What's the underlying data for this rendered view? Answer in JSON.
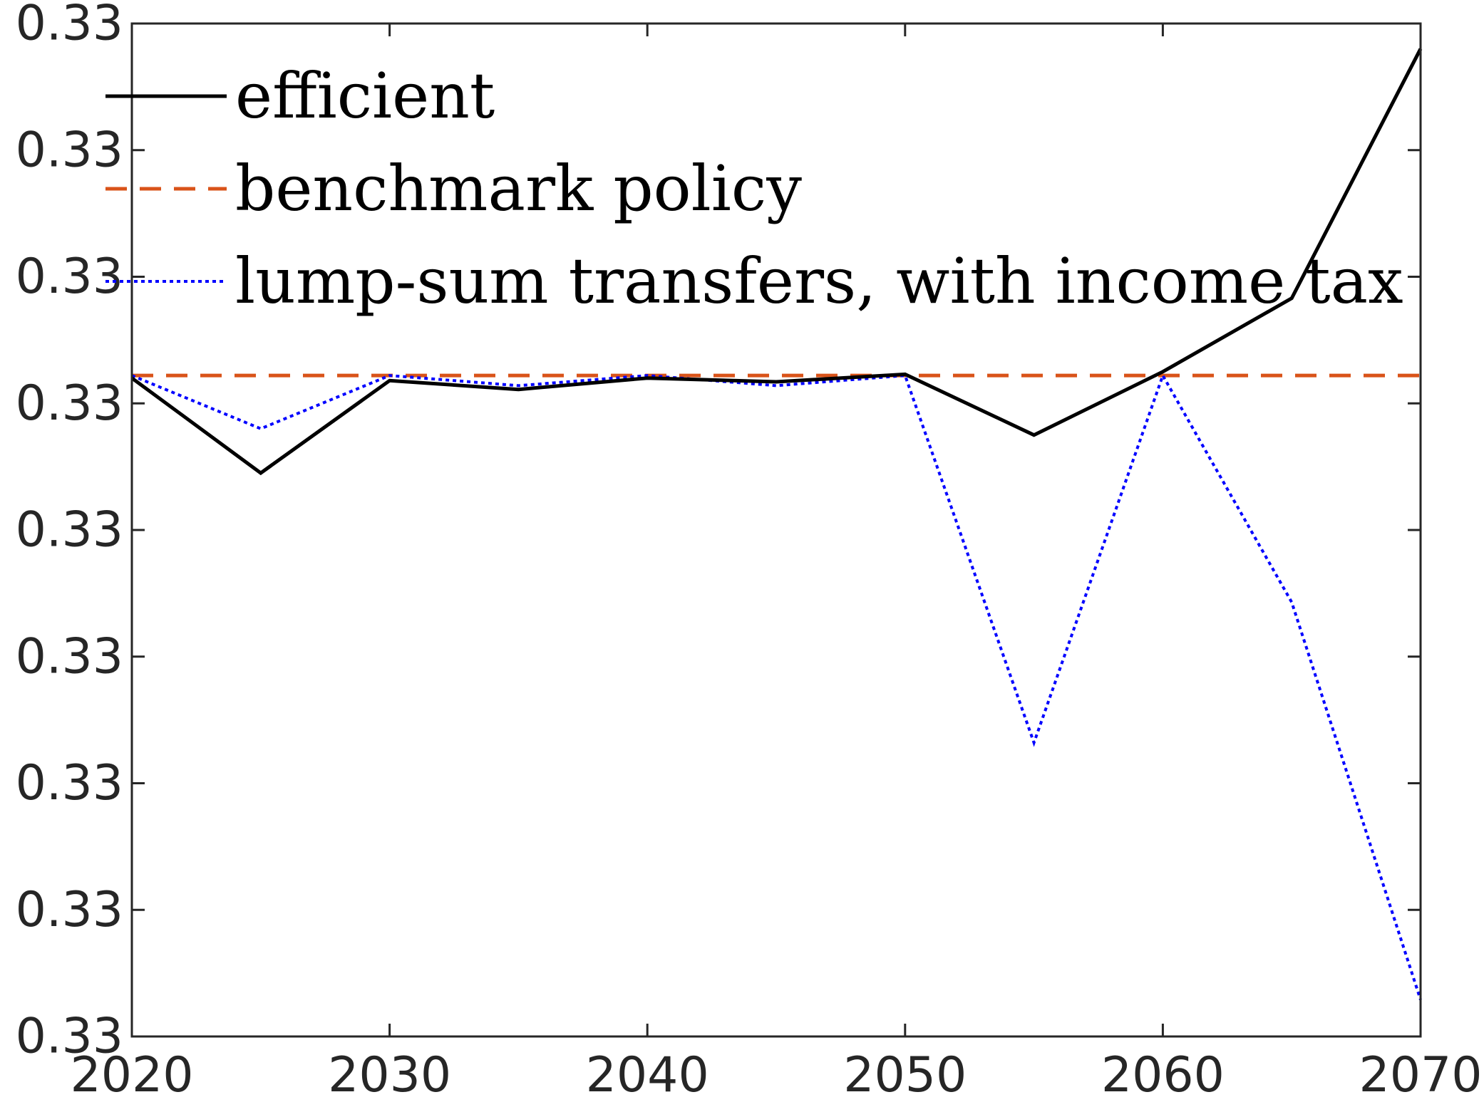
{
  "chart_data": {
    "type": "line",
    "title": "",
    "xlabel": "",
    "ylabel": "",
    "x": [
      2020,
      2025,
      2030,
      2035,
      2040,
      2045,
      2050,
      2055,
      2060,
      2065,
      2070
    ],
    "xlim": [
      2020,
      2070
    ],
    "xticks": [
      2020,
      2030,
      2040,
      2050,
      2060,
      2070
    ],
    "xtick_labels": [
      "2020",
      "2030",
      "2040",
      "2050",
      "2060",
      "2070"
    ],
    "ylim": [
      0,
      8
    ],
    "yticks": [
      0,
      1,
      2,
      3,
      4,
      5,
      6,
      7,
      8
    ],
    "ytick_labels": [
      "0.33",
      "0.33",
      "0.33",
      "0.33",
      "0.33",
      "0.33",
      "0.33",
      "0.33",
      "0.33"
    ],
    "grid": false,
    "legend_position": "top-left",
    "series": [
      {
        "name": "efficient",
        "color": "#000000",
        "style": "solid",
        "values": [
          5.2,
          4.45,
          5.18,
          5.11,
          5.2,
          5.17,
          5.23,
          4.75,
          5.25,
          5.83,
          7.8
        ]
      },
      {
        "name": "benchmark policy",
        "color": "#D95319",
        "style": "dashed",
        "values": [
          5.22,
          5.22,
          5.22,
          5.22,
          5.22,
          5.22,
          5.22,
          5.22,
          5.22,
          5.22,
          5.22
        ]
      },
      {
        "name": "lump-sum transfers, with income tax",
        "color": "#0000FF",
        "style": "dotted",
        "values": [
          5.22,
          4.8,
          5.22,
          5.14,
          5.22,
          5.14,
          5.22,
          2.32,
          5.22,
          3.43,
          0.29
        ]
      }
    ]
  }
}
